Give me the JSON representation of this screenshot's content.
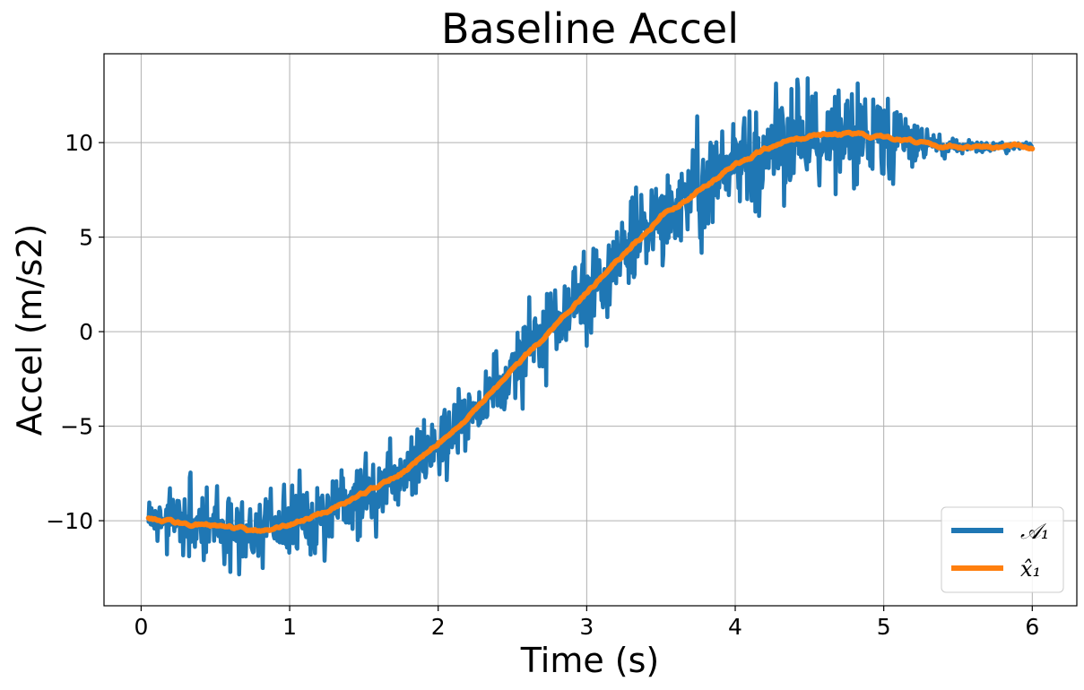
{
  "chart_data": {
    "type": "line",
    "title": "Baseline Accel",
    "xlabel": "Time (s)",
    "ylabel": "Accel (m/s2)",
    "xlim": [
      -0.25,
      6.3
    ],
    "ylim": [
      -14.5,
      14.7
    ],
    "xticks": [
      0,
      1,
      2,
      3,
      4,
      5,
      6
    ],
    "xtick_labels": [
      "0",
      "1",
      "2",
      "3",
      "4",
      "5",
      "6"
    ],
    "yticks": [
      -10,
      -5,
      0,
      5,
      10
    ],
    "ytick_labels": [
      "−10",
      "−5",
      "0",
      "5",
      "10"
    ],
    "grid": true,
    "legend_position": "bottom-right",
    "series": [
      {
        "name": "𝒜₁",
        "color": "#1f77b4",
        "style": "noisy",
        "x": [
          0.05,
          0.25,
          0.5,
          0.75,
          1.0,
          1.25,
          1.5,
          1.75,
          2.0,
          2.25,
          2.5,
          2.75,
          3.0,
          3.25,
          3.5,
          3.75,
          4.0,
          4.25,
          4.5,
          4.75,
          5.0,
          5.25,
          5.5,
          5.75,
          6.0
        ],
        "y": [
          -9.8,
          -10.1,
          -10.3,
          -10.5,
          -10.2,
          -9.5,
          -8.6,
          -7.5,
          -5.9,
          -4.2,
          -2.0,
          0.0,
          2.1,
          4.0,
          6.1,
          7.5,
          8.8,
          9.8,
          10.4,
          10.5,
          10.2,
          10.0,
          9.8,
          9.8,
          9.8
        ],
        "noise_amplitude": [
          0.9,
          1.3,
          1.4,
          1.4,
          1.4,
          1.4,
          1.4,
          1.4,
          1.4,
          1.4,
          1.5,
          1.6,
          1.6,
          1.7,
          1.8,
          1.9,
          2.0,
          2.1,
          2.1,
          2.0,
          1.8,
          0.6,
          0.25,
          0.2,
          0.15
        ],
        "y_max_observed": 13.4,
        "y_min_observed": -13.0
      },
      {
        "name": "x̂₁",
        "color": "#ff7f0e",
        "style": "smooth",
        "x": [
          0.05,
          0.25,
          0.5,
          0.75,
          1.0,
          1.25,
          1.5,
          1.75,
          2.0,
          2.25,
          2.5,
          2.75,
          3.0,
          3.25,
          3.5,
          3.75,
          4.0,
          4.25,
          4.5,
          4.75,
          5.0,
          5.25,
          5.5,
          5.75,
          6.0
        ],
        "y": [
          -9.8,
          -10.1,
          -10.3,
          -10.5,
          -10.2,
          -9.5,
          -8.6,
          -7.5,
          -5.9,
          -4.2,
          -2.0,
          0.0,
          2.1,
          4.0,
          6.1,
          7.5,
          8.8,
          9.8,
          10.4,
          10.5,
          10.2,
          10.0,
          9.8,
          9.8,
          9.8
        ]
      }
    ]
  }
}
